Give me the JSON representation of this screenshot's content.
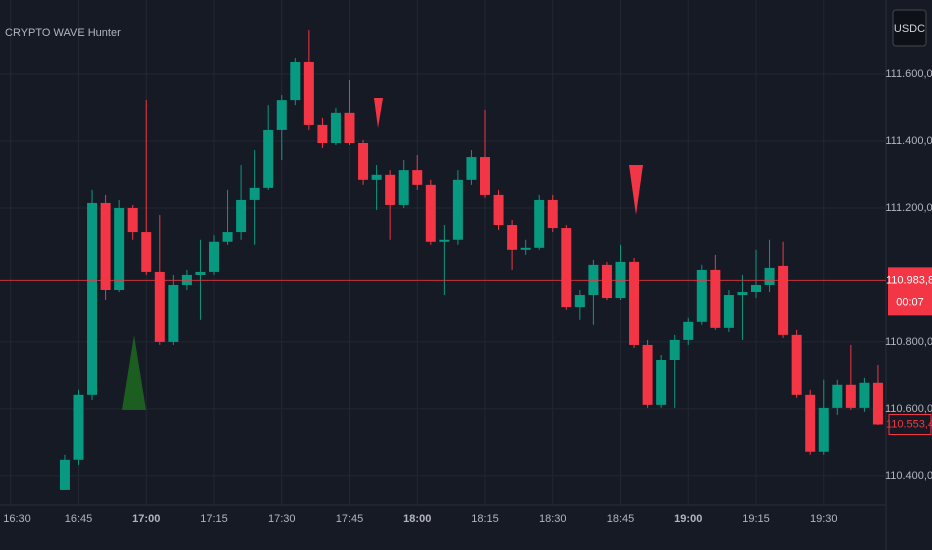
{
  "chart_data": {
    "type": "candlestick",
    "title": "CRYPTO WAVE Hunter",
    "symbol_button": "USDC",
    "up_color": "#089981",
    "down_color": "#f23645",
    "grid": true,
    "categories": [
      "16:30",
      null,
      null,
      null,
      null,
      "16:45",
      null,
      null,
      null,
      null,
      "17:00",
      null,
      null,
      null,
      null,
      "17:15",
      null,
      null,
      null,
      null,
      "17:30",
      null,
      null,
      null,
      null,
      "17:45",
      null,
      null,
      null,
      null,
      "18:00",
      null,
      null,
      null,
      null,
      "18:15",
      null,
      null,
      null,
      null,
      "18:30",
      null,
      null,
      null,
      null,
      "18:45",
      null,
      null,
      null,
      null,
      "19:00",
      null,
      null,
      null,
      null,
      "19:15",
      null,
      null,
      null,
      null,
      "19:30",
      null,
      null,
      null,
      null
    ],
    "open": [
      null,
      null,
      null,
      null,
      110358,
      110448,
      110642,
      111215,
      110955,
      111200,
      111128,
      111009,
      110800,
      110970,
      111000,
      111009,
      111099,
      111128,
      111224,
      111260,
      111433,
      111522,
      111636,
      111448,
      111394,
      111484,
      111394,
      111284,
      111299,
      111209,
      111313,
      111269,
      111099,
      111105,
      111284,
      111352,
      111239,
      111149,
      111075,
      111081,
      111224,
      111140,
      110904,
      110940,
      111030,
      110931,
      111039,
      110791,
      110612,
      110746,
      110806,
      110860,
      111015,
      110842,
      110940,
      110949,
      110970,
      111027,
      110821,
      110642,
      110472,
      110603,
      110672,
      110603,
      110678
    ],
    "high": [
      null,
      null,
      null,
      null,
      110463,
      110657,
      111254,
      111239,
      111224,
      111209,
      111522,
      111179,
      111000,
      111015,
      111105,
      111119,
      111254,
      111328,
      111373,
      111507,
      111537,
      111648,
      111731,
      111469,
      111499,
      111582,
      111403,
      111328,
      111313,
      111343,
      111358,
      111284,
      111149,
      111313,
      111373,
      111493,
      111254,
      111164,
      111105,
      111239,
      111239,
      111149,
      110955,
      111045,
      111039,
      111090,
      111051,
      110806,
      110761,
      110821,
      110872,
      111030,
      111060,
      110955,
      111000,
      111075,
      111105,
      111099,
      110836,
      110657,
      110687,
      110687,
      110791,
      110693,
      110731
    ],
    "low": [
      null,
      null,
      null,
      null,
      110358,
      110433,
      110627,
      110925,
      110949,
      111105,
      111000,
      110791,
      110791,
      110955,
      110866,
      111000,
      111090,
      111105,
      111090,
      111254,
      111343,
      111507,
      111433,
      111379,
      111388,
      111388,
      111269,
      111194,
      111105,
      111200,
      111254,
      111090,
      110940,
      111090,
      111269,
      111230,
      111134,
      111015,
      111060,
      111075,
      111128,
      110896,
      110866,
      110851,
      110925,
      110925,
      110782,
      110603,
      110603,
      110603,
      110791,
      110851,
      110836,
      110830,
      110806,
      110931,
      110949,
      110812,
      110633,
      110463,
      110463,
      110582,
      110597,
      110591,
      110552
    ],
    "close": [
      null,
      null,
      null,
      null,
      110448,
      110642,
      111215,
      110955,
      111200,
      111128,
      111009,
      110800,
      110970,
      111000,
      111009,
      111099,
      111128,
      111224,
      111260,
      111433,
      111522,
      111636,
      111448,
      111394,
      111484,
      111394,
      111284,
      111299,
      111209,
      111313,
      111269,
      111099,
      111105,
      111284,
      111352,
      111239,
      111149,
      111075,
      111081,
      111224,
      111140,
      110904,
      110940,
      111030,
      110931,
      111039,
      110791,
      110612,
      110746,
      110806,
      110860,
      111015,
      110842,
      110940,
      110949,
      110970,
      111021,
      110821,
      110642,
      110472,
      110603,
      110672,
      110603,
      110678,
      110553.4
    ],
    "ylim": [
      110313,
      111821
    ],
    "yticks": [
      {
        "value": 110400,
        "label": "110.400,0"
      },
      {
        "value": 110600,
        "label": "110.600,0"
      },
      {
        "value": 110800,
        "label": "110.800,0"
      },
      {
        "value": 111200,
        "label": "111.200,0"
      },
      {
        "value": 111400,
        "label": "111.400,0"
      },
      {
        "value": 111600,
        "label": "111.600,0"
      }
    ],
    "price_line": {
      "value": 110983.8,
      "label": "110.983,8",
      "countdown": "00:07"
    },
    "last_price": {
      "value": 110553.4,
      "label": "110.553,4"
    }
  }
}
